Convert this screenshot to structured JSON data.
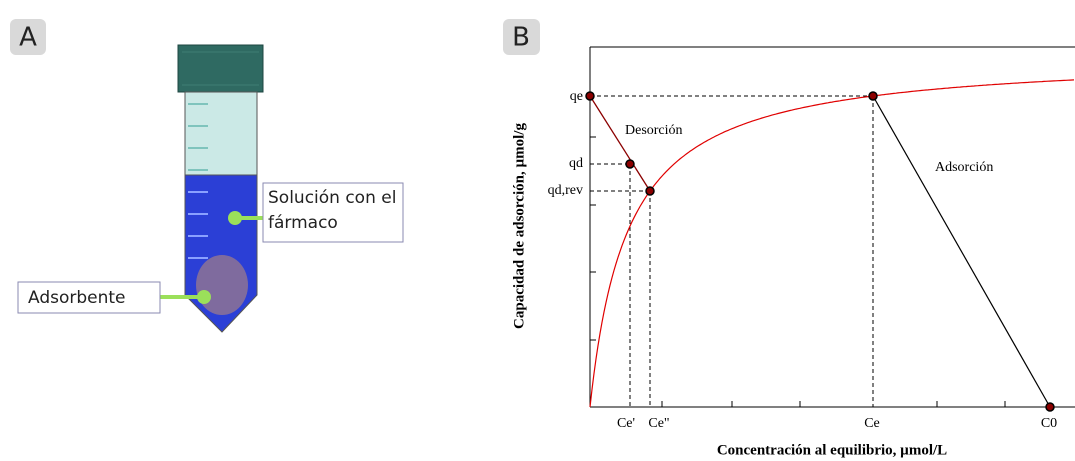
{
  "panel_a": {
    "label": "A",
    "callouts": [
      "Solución con el fármaco",
      "Adsorbente"
    ]
  },
  "panel_b": {
    "label": "B",
    "y_axis_title": "Capacidad de adsorción, µmol/g",
    "x_axis_title": "Concentración al equilibrio, µmol/L",
    "y_labels": [
      "qe",
      "qd",
      "qd,rev"
    ],
    "x_labels": [
      "Ce'",
      "Ce\"",
      "Ce",
      "C0"
    ],
    "annotations": [
      "Desorción",
      "Adsorción"
    ]
  }
}
